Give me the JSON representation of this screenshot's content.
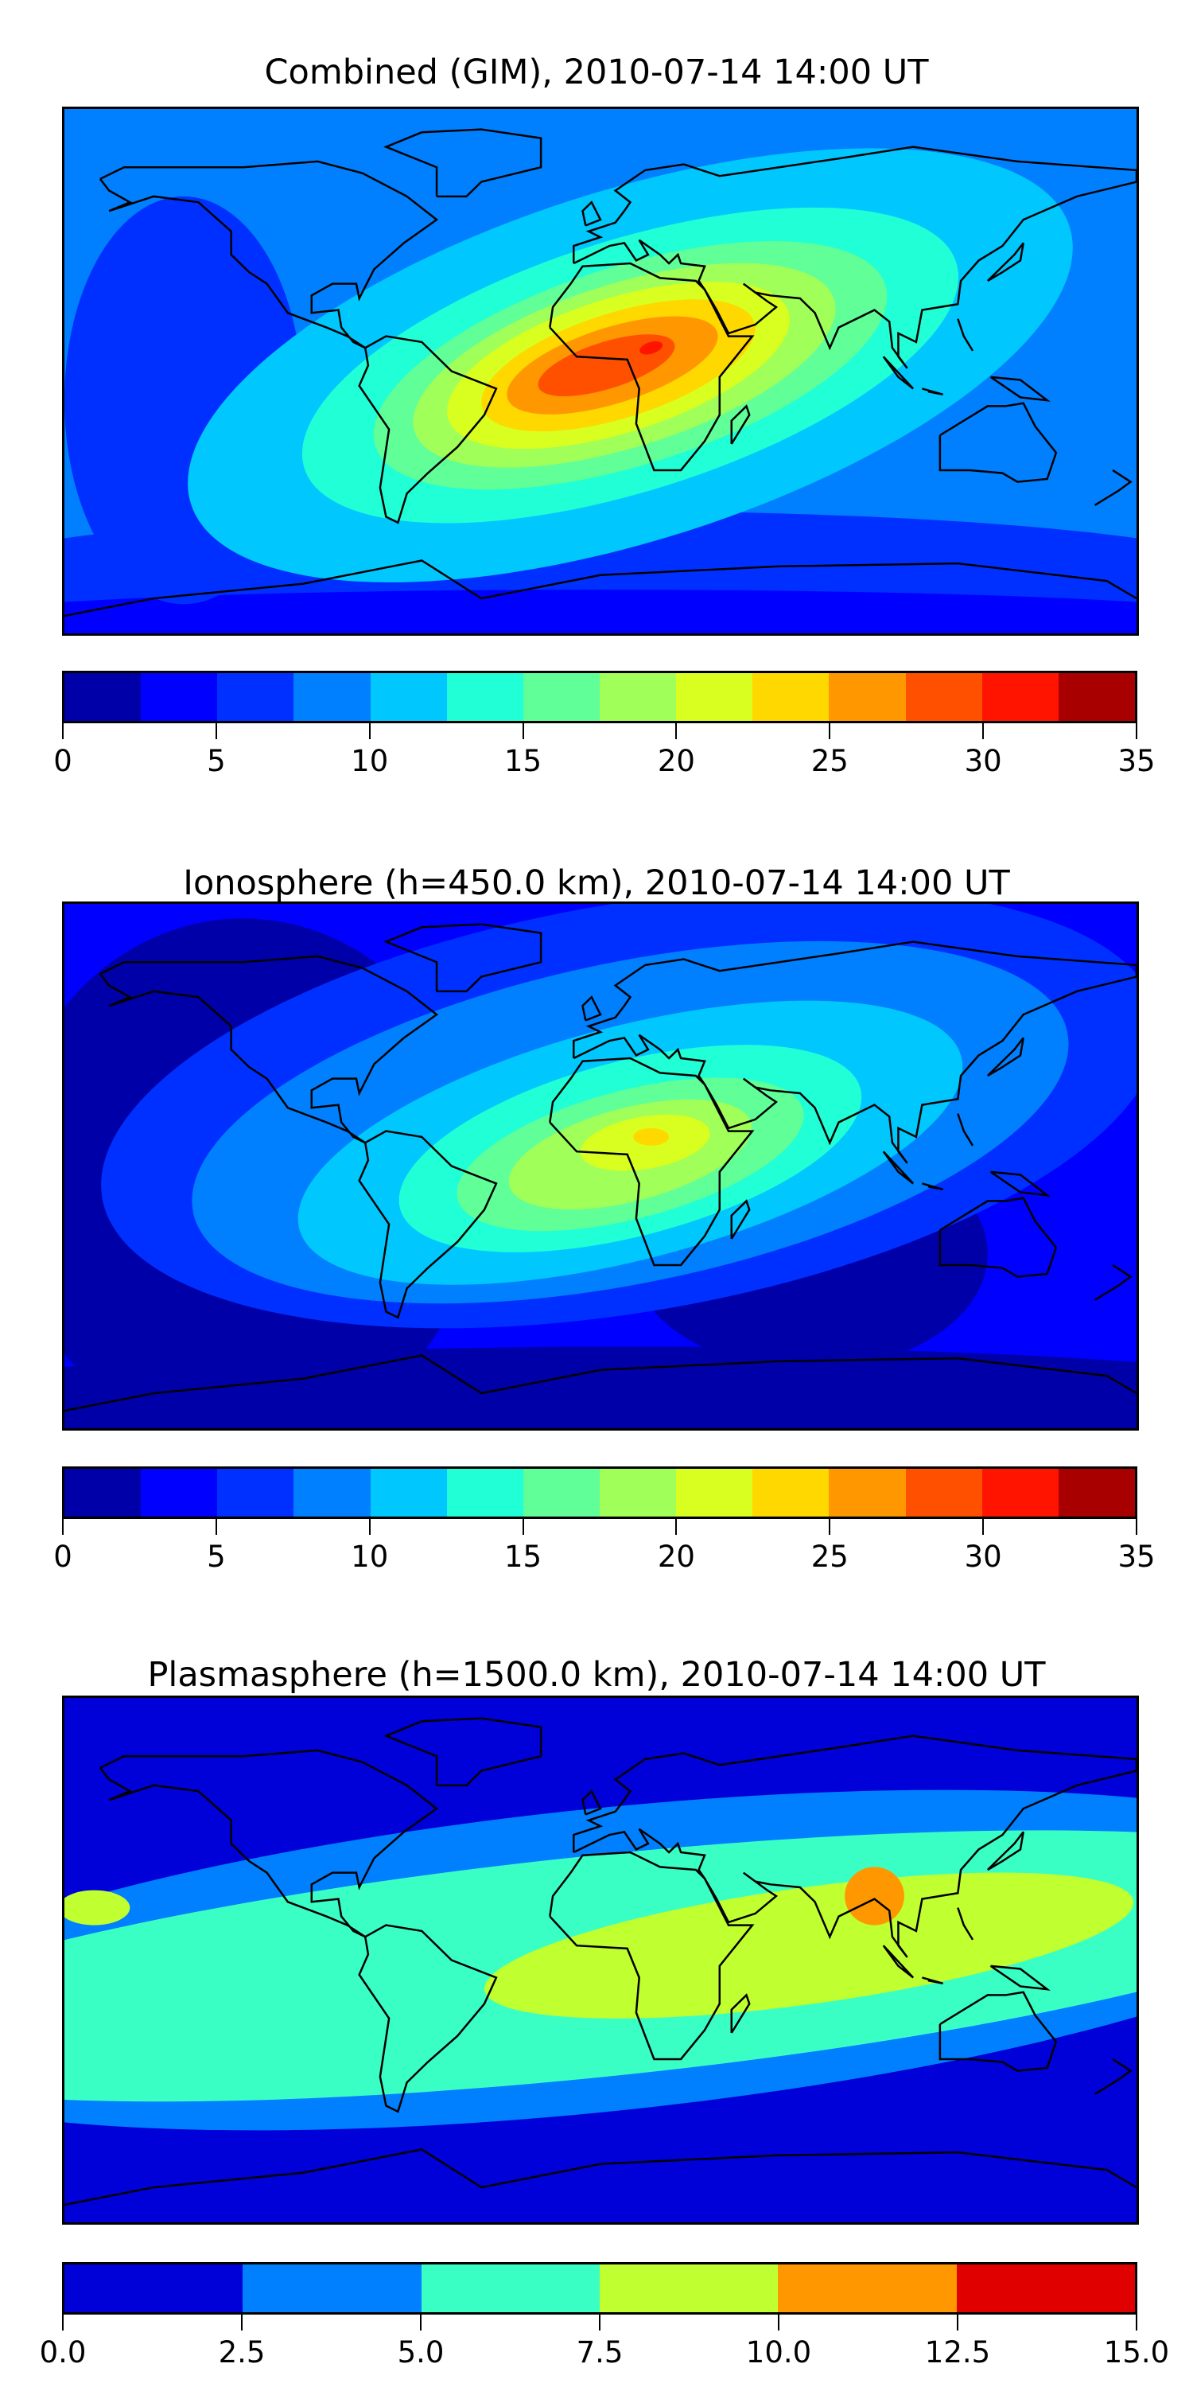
{
  "chart_data": [
    {
      "type": "heatmap",
      "title": "Combined (GIM), 2010-07-14 14:00 UT",
      "projection": "equirectangular world map with coastlines",
      "levels": [
        0,
        2.5,
        5,
        7.5,
        10,
        12.5,
        15,
        17.5,
        20,
        22.5,
        25,
        27.5,
        30,
        32.5,
        35
      ],
      "colors": [
        "#0000a8",
        "#0000ff",
        "#0030ff",
        "#0080ff",
        "#00c8ff",
        "#20ffd5",
        "#60ff98",
        "#a0ff58",
        "#d8ff20",
        "#ffd800",
        "#ff9800",
        "#ff5000",
        "#ff1400",
        "#a80000"
      ],
      "colorbar_ticks": [
        "0",
        "5",
        "10",
        "15",
        "20",
        "25",
        "30",
        "35"
      ],
      "colorbar_range": [
        0,
        35
      ],
      "max_region": "West/Central Africa, peak ~30-32.5"
    },
    {
      "type": "heatmap",
      "title": "Ionosphere  (h=450.0 km), 2010-07-14 14:00 UT",
      "projection": "equirectangular world map with coastlines",
      "levels": [
        0,
        2.5,
        5,
        7.5,
        10,
        12.5,
        15,
        17.5,
        20,
        22.5,
        25,
        27.5,
        30,
        32.5,
        35
      ],
      "colors": [
        "#0000a8",
        "#0000ff",
        "#0030ff",
        "#0080ff",
        "#00c8ff",
        "#20ffd5",
        "#60ff98",
        "#a0ff58",
        "#d8ff20",
        "#ffd800",
        "#ff9800",
        "#ff5000",
        "#ff1400",
        "#a80000"
      ],
      "colorbar_ticks": [
        "0",
        "5",
        "10",
        "15",
        "20",
        "25",
        "30",
        "35"
      ],
      "colorbar_range": [
        0,
        35
      ],
      "max_region": "North Africa, peak ~22.5-25"
    },
    {
      "type": "heatmap",
      "title": "Plasmasphere (h=1500.0 km), 2010-07-14 14:00 UT",
      "projection": "equirectangular world map with coastlines",
      "levels": [
        0,
        2.5,
        5,
        7.5,
        10,
        12.5,
        15
      ],
      "colors": [
        "#0000d8",
        "#0080ff",
        "#3affc4",
        "#c0ff30",
        "#ff9800",
        "#e00000"
      ],
      "colorbar_ticks": [
        "0.0",
        "2.5",
        "5.0",
        "7.5",
        "10.0",
        "12.5",
        "15.0"
      ],
      "colorbar_range": [
        0,
        15
      ],
      "max_region": "India / Bay of Bengal, peak ~10-12.5"
    }
  ]
}
